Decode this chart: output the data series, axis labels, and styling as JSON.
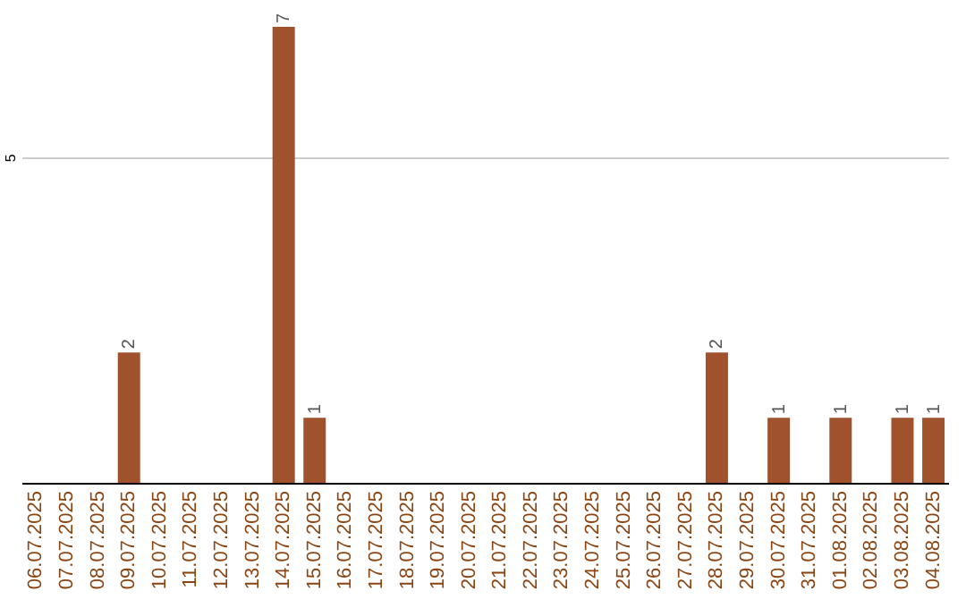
{
  "chart_data": {
    "type": "bar",
    "categories": [
      "06.07.2025",
      "07.07.2025",
      "08.07.2025",
      "09.07.2025",
      "10.07.2025",
      "11.07.2025",
      "12.07.2025",
      "13.07.2025",
      "14.07.2025",
      "15.07.2025",
      "16.07.2025",
      "17.07.2025",
      "18.07.2025",
      "19.07.2025",
      "20.07.2025",
      "21.07.2025",
      "22.07.2025",
      "23.07.2025",
      "24.07.2025",
      "25.07.2025",
      "26.07.2025",
      "27.07.2025",
      "28.07.2025",
      "29.07.2025",
      "30.07.2025",
      "31.07.2025",
      "01.08.2025",
      "02.08.2025",
      "03.08.2025",
      "04.08.2025"
    ],
    "values": [
      null,
      null,
      null,
      2,
      null,
      null,
      null,
      null,
      7,
      1,
      null,
      null,
      null,
      null,
      null,
      null,
      null,
      null,
      null,
      null,
      null,
      null,
      2,
      null,
      1,
      null,
      1,
      null,
      1,
      1
    ],
    "color": "#a0522d",
    "data_labels": true,
    "ylim": [
      0,
      7
    ],
    "yticks": [
      5
    ],
    "grid": "y"
  }
}
